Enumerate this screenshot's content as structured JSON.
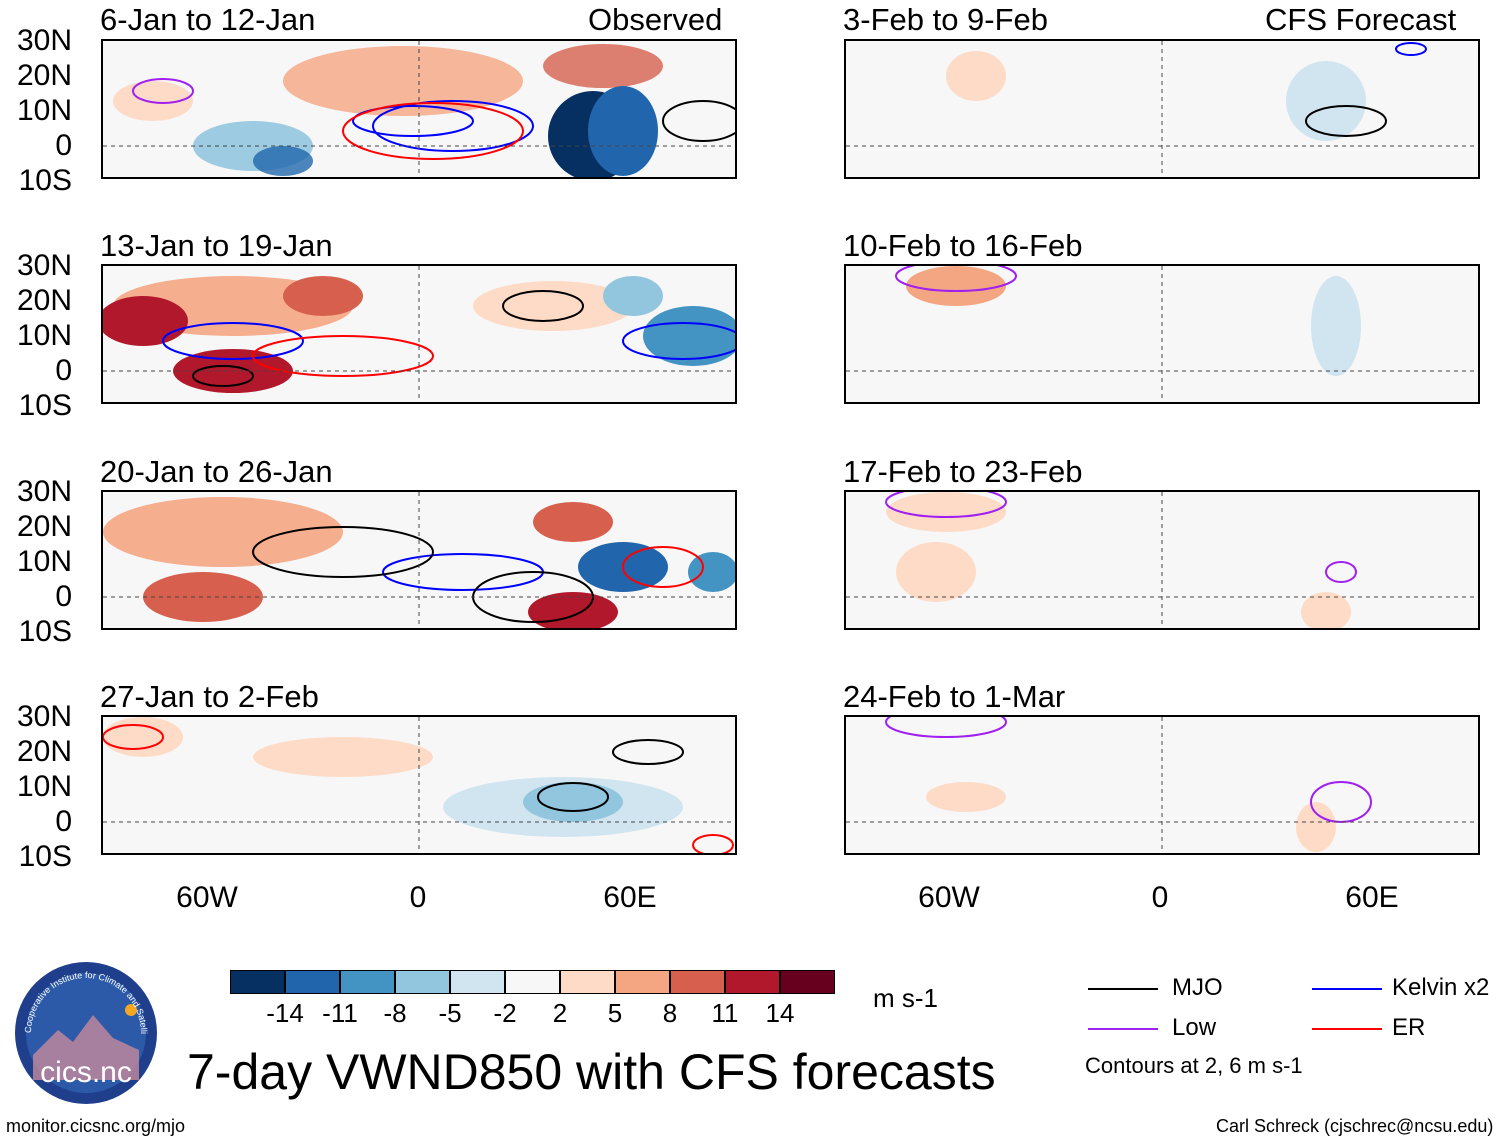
{
  "title": "7-day VWND850 with CFS forecasts",
  "observed_header": "Observed",
  "forecast_header": "CFS Forecast",
  "lat_labels": [
    "30N",
    "20N",
    "10N",
    "0",
    "10S"
  ],
  "lon_labels": [
    "60W",
    "0",
    "60E"
  ],
  "panels": {
    "obs": [
      {
        "period": "6-Jan to 12-Jan"
      },
      {
        "period": "13-Jan to 19-Jan"
      },
      {
        "period": "20-Jan to 26-Jan"
      },
      {
        "period": "27-Jan to 2-Feb"
      }
    ],
    "fc": [
      {
        "period": "3-Feb to 9-Feb"
      },
      {
        "period": "10-Feb to 16-Feb"
      },
      {
        "period": "17-Feb to 23-Feb"
      },
      {
        "period": "24-Feb to 1-Mar"
      }
    ]
  },
  "colorbar": {
    "ticks": [
      "-14",
      "-11",
      "-8",
      "-5",
      "-2",
      "2",
      "5",
      "8",
      "11",
      "14"
    ],
    "colors": [
      "#053061",
      "#2166ac",
      "#4393c3",
      "#92c5de",
      "#d1e5f0",
      "#f7f7f7",
      "#fddbc7",
      "#f4a582",
      "#d6604d",
      "#b2182b",
      "#67001f"
    ],
    "units": "m s-1"
  },
  "legend": {
    "items": [
      {
        "label": "MJO",
        "color": "#000000"
      },
      {
        "label": "Kelvin x2",
        "color": "#0000ff"
      },
      {
        "label": "Low",
        "color": "#a020f0"
      },
      {
        "label": "ER",
        "color": "#ff0000"
      }
    ],
    "note": "Contours at 2, 6 m s-1"
  },
  "logo_text": "cics.nc",
  "logo_ring_text": "Cooperative Institute for Climate and Satellites",
  "footer_left": "monitor.cicsnc.org/mjo",
  "footer_right": "Carl Schreck (cjschrec@ncsu.edu)"
}
